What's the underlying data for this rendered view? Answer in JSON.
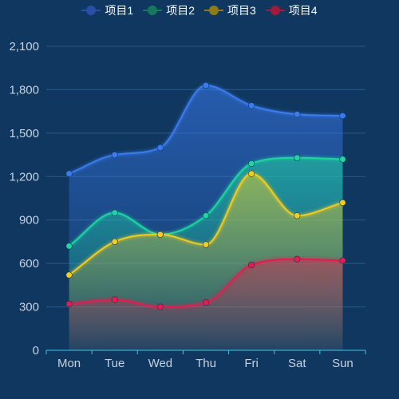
{
  "chart_data": {
    "type": "area",
    "title": "",
    "xlabel": "",
    "ylabel": "",
    "categories": [
      "Mon",
      "Tue",
      "Wed",
      "Thu",
      "Fri",
      "Sat",
      "Sun"
    ],
    "ylim": [
      0,
      2100
    ],
    "yticks": [
      0,
      300,
      600,
      900,
      1200,
      1500,
      1800,
      2100
    ],
    "ytick_labels": [
      "0",
      "300",
      "600",
      "900",
      "1,200",
      "1,500",
      "1,800",
      "2,100"
    ],
    "grid": true,
    "smooth": true,
    "legend_position": "top-center",
    "series": [
      {
        "name": "项目1",
        "color": "#3a7bf0",
        "values": [
          1220,
          1350,
          1400,
          1830,
          1690,
          1630,
          1620
        ]
      },
      {
        "name": "项目2",
        "color": "#1fd6a0",
        "values": [
          720,
          950,
          800,
          930,
          1290,
          1330,
          1320
        ]
      },
      {
        "name": "项目3",
        "color": "#f2cc1f",
        "values": [
          520,
          750,
          800,
          730,
          1220,
          930,
          1020
        ]
      },
      {
        "name": "项目4",
        "color": "#e31d4f",
        "values": [
          320,
          350,
          300,
          330,
          590,
          630,
          620
        ]
      }
    ],
    "legend_icon_colors": [
      "#2a4fa8",
      "#157a5c",
      "#8f7a1a",
      "#a11a3c"
    ]
  },
  "style": {
    "background": "#0f375f",
    "grid_color": "#2a5a86",
    "axis_color": "#3ec6ee",
    "label_color": "#c6d2e0"
  }
}
